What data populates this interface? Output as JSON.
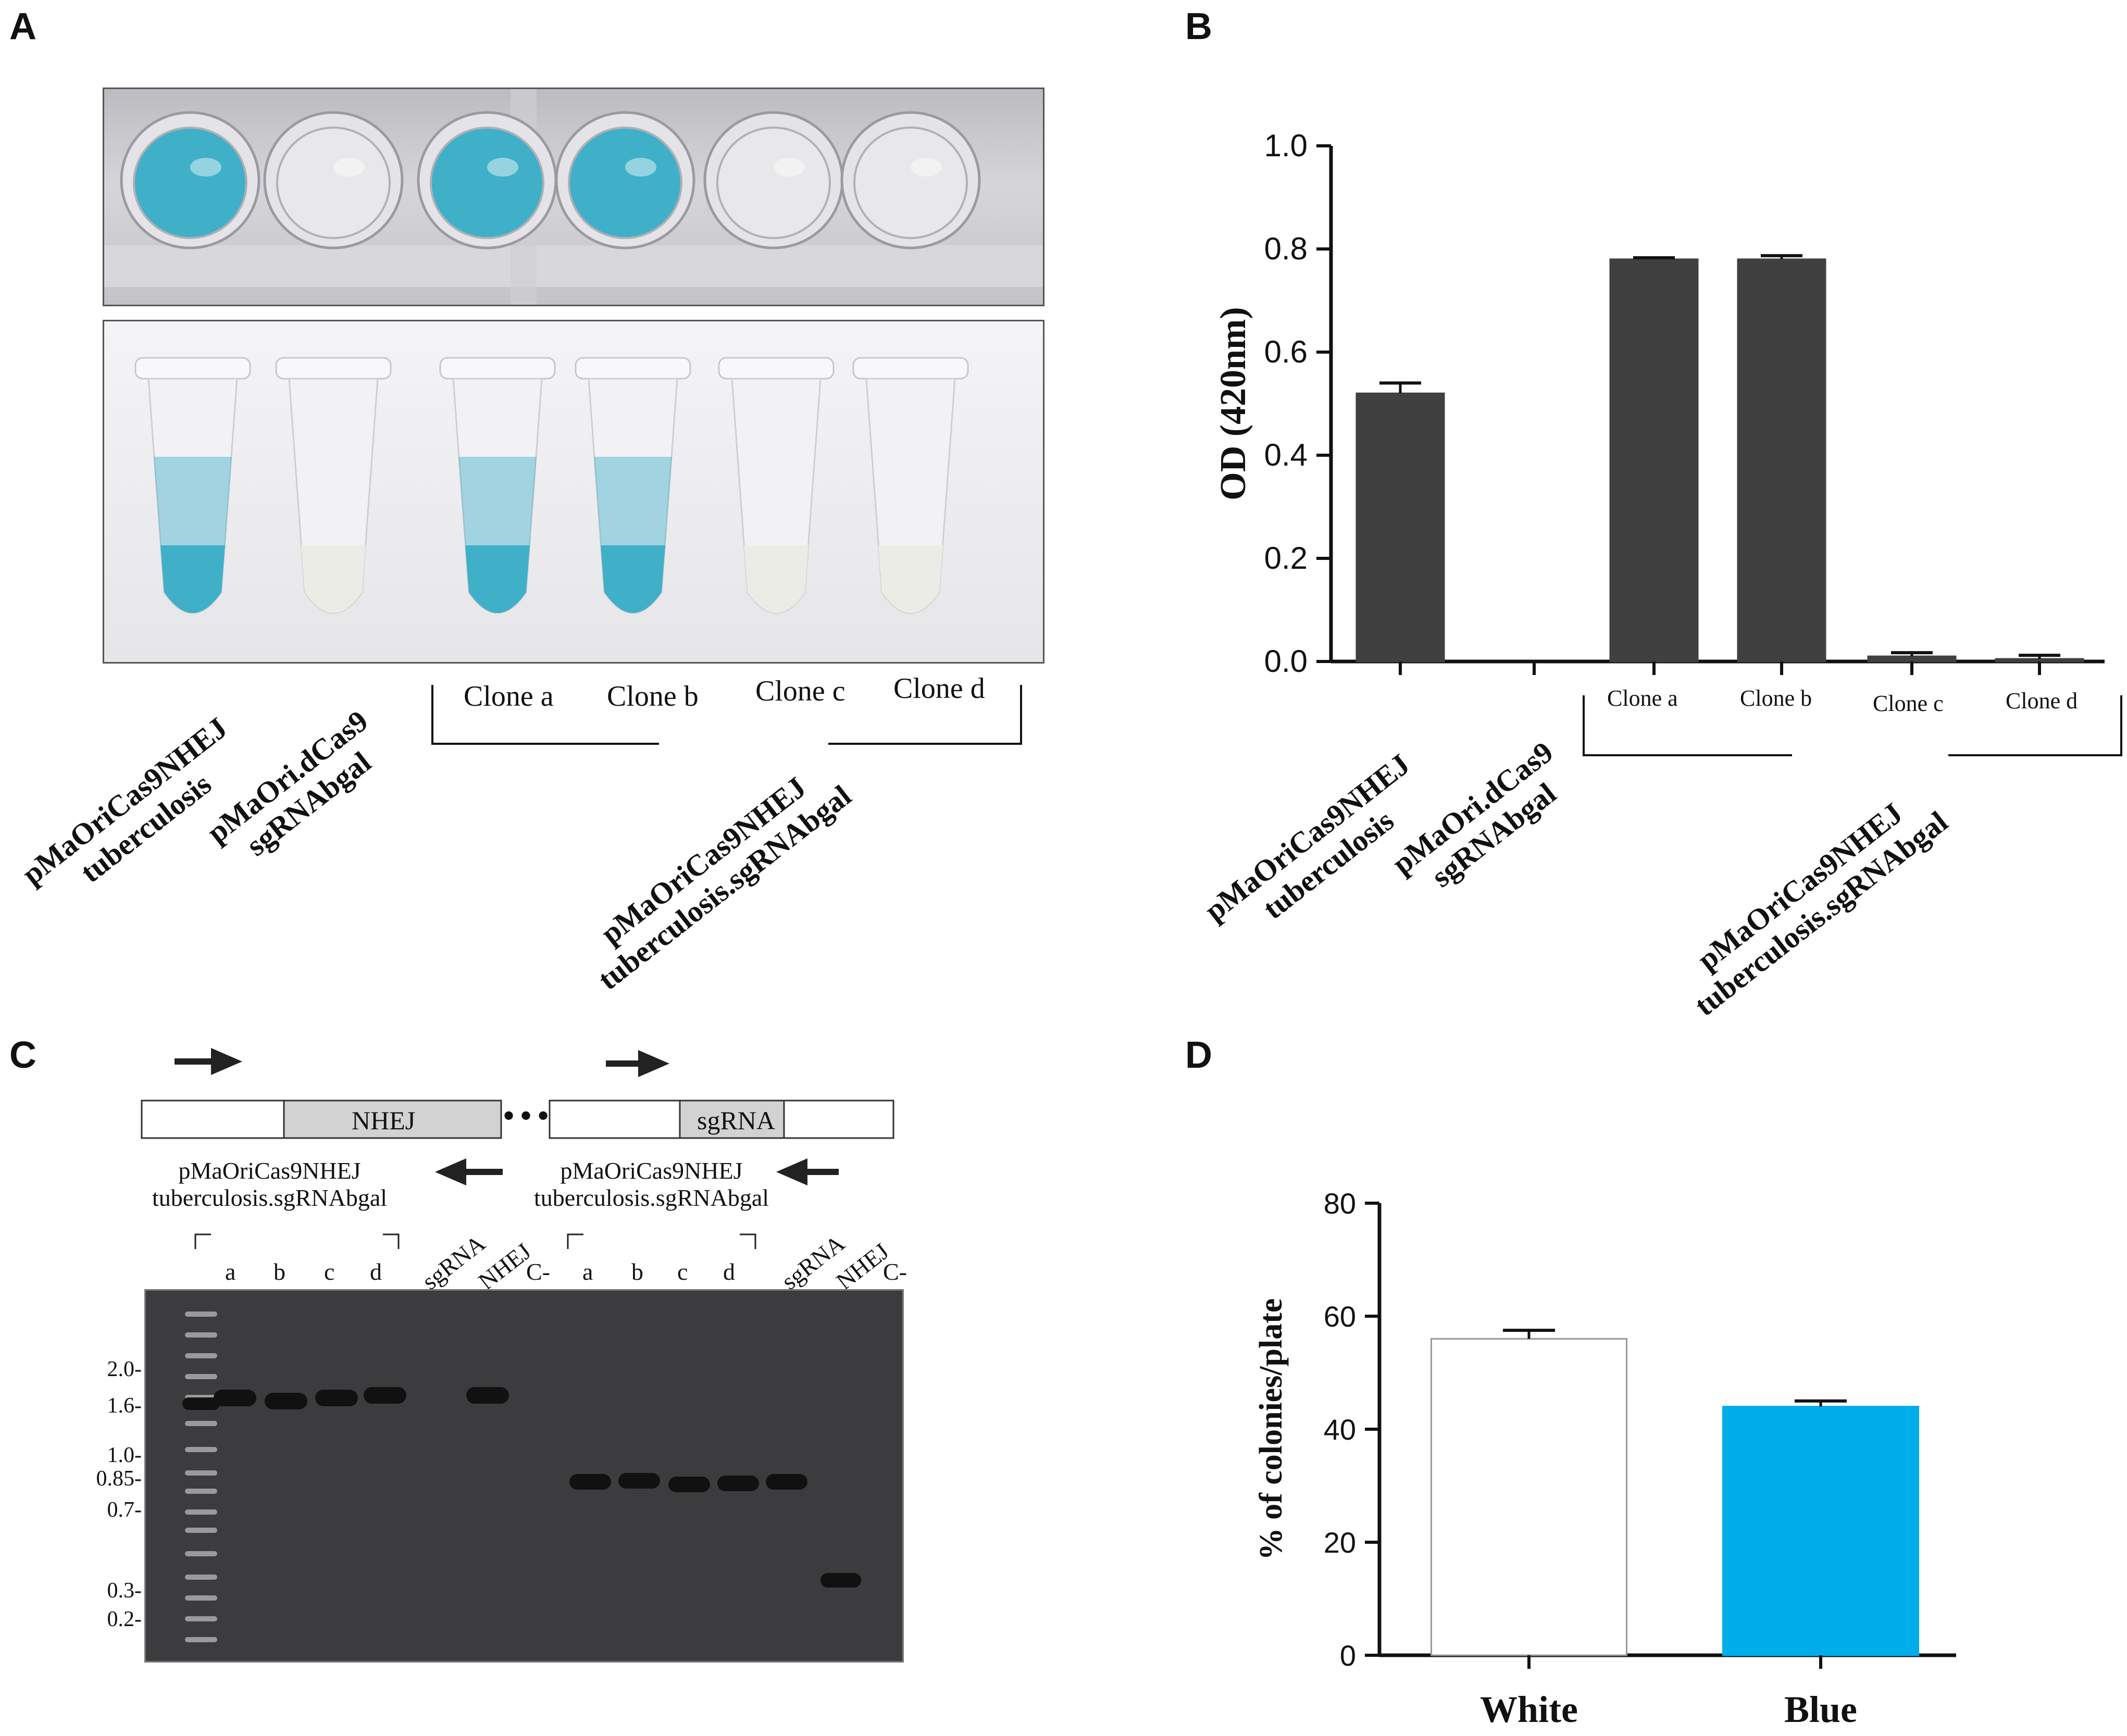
{
  "figure": {
    "panel_letters": [
      "A",
      "B",
      "C",
      "D"
    ]
  },
  "panel_a": {
    "clone_labels": [
      "Clone a",
      "Clone b",
      "Clone c",
      "Clone d"
    ],
    "group_labels": {
      "g1": [
        "pMaOriCas9NHEJ",
        "tuberculosis"
      ],
      "g2": [
        "pMaOri.dCas9",
        "sgRNAbgal"
      ],
      "g3": [
        "pMaOriCas9NHEJ",
        "tuberculosis.sgRNAbgal"
      ]
    },
    "colors": {
      "blue": "#3fb0c8",
      "clear": "#e8e8ea",
      "well_bg": "#c8c8cc"
    },
    "well_states": [
      "blue",
      "clear",
      "blue",
      "blue",
      "clear",
      "clear"
    ]
  },
  "panel_b": {
    "clone_labels": [
      "Clone a",
      "Clone b",
      "Clone c",
      "Clone d"
    ],
    "group_labels": {
      "g1": [
        "pMaOriCas9NHEJ",
        "tuberculosis"
      ],
      "g2": [
        "pMaOri.dCas9",
        "sgRNAbgal"
      ],
      "g3": [
        "pMaOriCas9NHEJ",
        "tuberculosis.sgRNAbgal"
      ]
    }
  },
  "panel_c": {
    "map_labels": {
      "nhej": "NHEJ",
      "sgrna": "sgRNA",
      "dots": "•••"
    },
    "construct_label": [
      "pMaOriCas9NHEJ",
      "tuberculosis.sgRNAbgal"
    ],
    "lanes_left": [
      "a",
      "b",
      "c",
      "d",
      "sgRNA",
      "NHEJ",
      "C-"
    ],
    "lanes_right": [
      "a",
      "b",
      "c",
      "d",
      "sgRNA",
      "NHEJ",
      "C-"
    ],
    "ladder_labels": [
      "2.0-",
      "1.6-",
      "1.0-",
      "0.85-",
      "0.7-",
      "0.3-",
      "0.2-"
    ]
  },
  "chart_data": [
    {
      "type": "bar",
      "panel": "B",
      "categories": [
        "pMaOriCas9NHEJ tuberculosis",
        "pMaOri.dCas9 sgRNAbgal",
        "Clone a",
        "Clone b",
        "Clone c",
        "Clone d"
      ],
      "values": [
        0.52,
        0.0,
        0.78,
        0.78,
        0.01,
        0.005
      ],
      "errors": [
        0.02,
        0.0,
        0.003,
        0.007,
        0.007,
        0.007
      ],
      "title": "",
      "xlabel": "",
      "ylabel": "OD (420nm)",
      "ylim": [
        0,
        1.0
      ],
      "yticks": [
        "0.0",
        "0.2",
        "0.4",
        "0.6",
        "0.8",
        "1.0"
      ],
      "bar_color": "#404040",
      "grid": false
    },
    {
      "type": "bar",
      "panel": "D",
      "categories": [
        "White",
        "Blue"
      ],
      "values": [
        56,
        44
      ],
      "errors": [
        1.5,
        1.0
      ],
      "title": "",
      "xlabel": "",
      "ylabel": "% of colonies/plate",
      "ylim": [
        0,
        80
      ],
      "yticks": [
        "0",
        "20",
        "40",
        "60",
        "80"
      ],
      "bar_colors": [
        "#ffffff",
        "#00adeb"
      ],
      "grid": false
    }
  ]
}
